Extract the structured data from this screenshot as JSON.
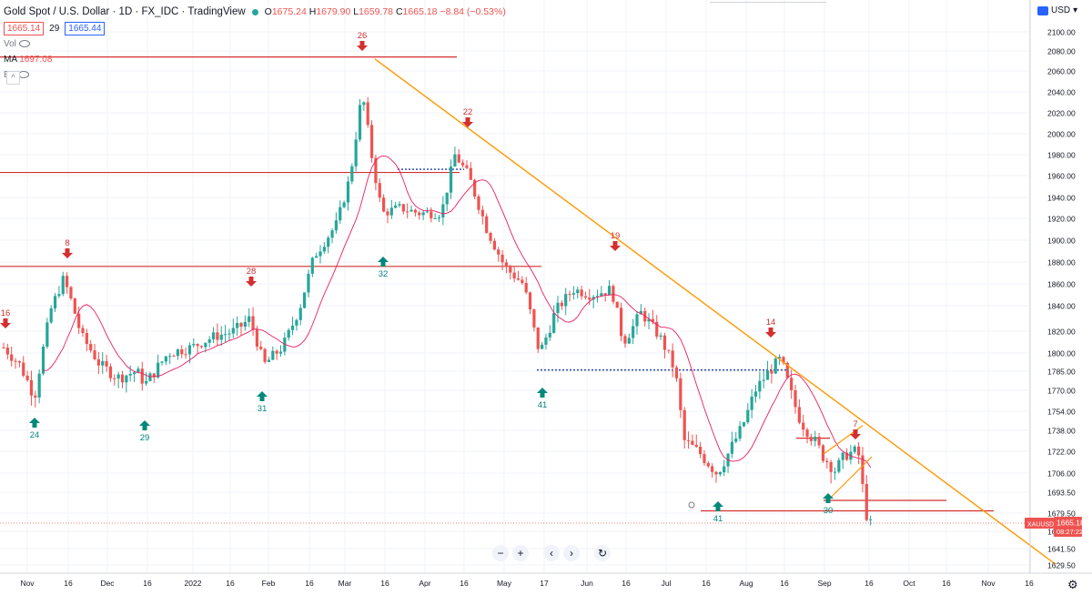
{
  "header": {
    "title": "Gold Spot / U.S. Dollar · 1D · FX_IDC · TradingView",
    "ohlc": {
      "o_label": "O",
      "o": "1675.24",
      "h_label": "H",
      "h": "1679.90",
      "l_label": "L",
      "l": "1659.78",
      "c_label": "C",
      "c": "1665.18",
      "change": "−8.84 (−0.53%)"
    },
    "bid": "1665.14",
    "spread": "29",
    "ask": "1665.44",
    "indicators": {
      "vol_label": "Vol",
      "ma_label": "MA",
      "ma_value": "1697.08",
      "bb_label": "BB"
    }
  },
  "currency": "USD",
  "toolbar": {
    "zoom_out": "−",
    "zoom_in": "+",
    "back": "‹",
    "forward": "›",
    "reset": "↻"
  },
  "colors": {
    "up": "#26a69a",
    "down": "#ef5350",
    "ma": "#e91e63",
    "trend": "#ff9800",
    "level": "#d32f2f",
    "support": "#1e40af",
    "arrow_down": "#d32f2f",
    "arrow_up": "#00897b"
  },
  "chart_data": {
    "type": "candlestick",
    "price_axis": {
      "ticks": [
        "2100.00",
        "2080.00",
        "2060.00",
        "2040.00",
        "2020.00",
        "2000.00",
        "1980.00",
        "1960.00",
        "1940.00",
        "1920.00",
        "1900.00",
        "1880.00",
        "1860.00",
        "1840.00",
        "1820.00",
        "1800.00",
        "1785.00",
        "1770.00",
        "1754.00",
        "1738.00",
        "1722.00",
        "1706.00",
        "1693.50",
        "1679.50",
        "1653.50",
        "1641.50",
        "1629.50"
      ],
      "last_price": "1665.18",
      "last_price_symbol": "XAUUSD",
      "countdown": "08:27:22"
    },
    "time_axis": {
      "ticks": [
        "Nov",
        "16",
        "Dec",
        "16",
        "2022",
        "16",
        "Feb",
        "16",
        "Mar",
        "16",
        "Apr",
        "16",
        "May",
        "17",
        "Jun",
        "16",
        "Jul",
        "16",
        "Aug",
        "16",
        "Sep",
        "16",
        "Oct",
        "16",
        "Nov",
        "16"
      ]
    },
    "pivot_labels": [
      {
        "text": "16",
        "kind": "high"
      },
      {
        "text": "24",
        "kind": "low"
      },
      {
        "text": "8",
        "kind": "high"
      },
      {
        "text": "29",
        "kind": "low"
      },
      {
        "text": "28",
        "kind": "high"
      },
      {
        "text": "31",
        "kind": "low"
      },
      {
        "text": "26",
        "kind": "high"
      },
      {
        "text": "32",
        "kind": "low"
      },
      {
        "text": "22",
        "kind": "high"
      },
      {
        "text": "41",
        "kind": "low"
      },
      {
        "text": "19",
        "kind": "high"
      },
      {
        "text": "41",
        "kind": "low"
      },
      {
        "text": "14",
        "kind": "high"
      },
      {
        "text": "7",
        "kind": "high"
      },
      {
        "text": "30",
        "kind": "low"
      }
    ],
    "horizontal_levels": [
      2074,
      1963,
      1876,
      1681,
      1688,
      1732
    ],
    "dotted_levels": [
      1966,
      1786
    ],
    "trendline": {
      "from": [
        "Mar 9",
        2070
      ],
      "to": [
        "Nov 15",
        1632
      ]
    }
  }
}
